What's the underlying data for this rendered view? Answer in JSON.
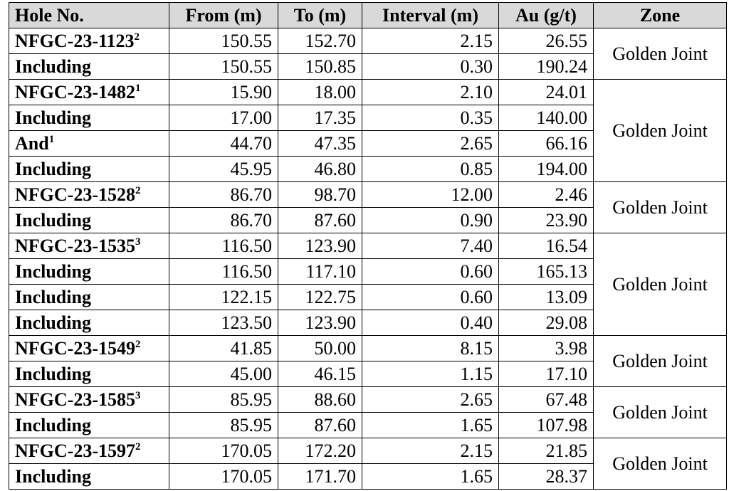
{
  "table": {
    "header": [
      "Hole No.",
      "From (m)",
      "To (m)",
      "Interval (m)",
      "Au (g/t)",
      "Zone"
    ],
    "groups": [
      {
        "zone": "Golden Joint",
        "rows": [
          {
            "hole": "NFGC-23-1123",
            "note": "2",
            "from": "150.55",
            "to": "152.70",
            "interval": "2.15",
            "au": "26.55"
          },
          {
            "hole": "Including",
            "from": "150.55",
            "to": "150.85",
            "interval": "0.30",
            "au": "190.24"
          }
        ]
      },
      {
        "zone": "Golden Joint",
        "rows": [
          {
            "hole": "NFGC-23-1482",
            "note": "1",
            "from": "15.90",
            "to": "18.00",
            "interval": "2.10",
            "au": "24.01"
          },
          {
            "hole": "Including",
            "from": "17.00",
            "to": "17.35",
            "interval": "0.35",
            "au": "140.00"
          },
          {
            "hole": "And",
            "note": "1",
            "from": "44.70",
            "to": "47.35",
            "interval": "2.65",
            "au": "66.16"
          },
          {
            "hole": "Including",
            "from": "45.95",
            "to": "46.80",
            "interval": "0.85",
            "au": "194.00"
          }
        ]
      },
      {
        "zone": "Golden Joint",
        "rows": [
          {
            "hole": "NFGC-23-1528",
            "note": "2",
            "from": "86.70",
            "to": "98.70",
            "interval": "12.00",
            "au": "2.46"
          },
          {
            "hole": "Including",
            "from": "86.70",
            "to": "87.60",
            "interval": "0.90",
            "au": "23.90"
          }
        ]
      },
      {
        "zone": "Golden Joint",
        "rows": [
          {
            "hole": "NFGC-23-1535",
            "note": "3",
            "from": "116.50",
            "to": "123.90",
            "interval": "7.40",
            "au": "16.54"
          },
          {
            "hole": "Including",
            "from": "116.50",
            "to": "117.10",
            "interval": "0.60",
            "au": "165.13"
          },
          {
            "hole": "Including",
            "from": "122.15",
            "to": "122.75",
            "interval": "0.60",
            "au": "13.09"
          },
          {
            "hole": "Including",
            "from": "123.50",
            "to": "123.90",
            "interval": "0.40",
            "au": "29.08"
          }
        ]
      },
      {
        "zone": "Golden Joint",
        "rows": [
          {
            "hole": "NFGC-23-1549",
            "note": "2",
            "from": "41.85",
            "to": "50.00",
            "interval": "8.15",
            "au": "3.98"
          },
          {
            "hole": "Including",
            "from": "45.00",
            "to": "46.15",
            "interval": "1.15",
            "au": "17.10"
          }
        ]
      },
      {
        "zone": "Golden Joint",
        "rows": [
          {
            "hole": "NFGC-23-1585",
            "note": "3",
            "from": "85.95",
            "to": "88.60",
            "interval": "2.65",
            "au": "67.48"
          },
          {
            "hole": "Including",
            "from": "85.95",
            "to": "87.60",
            "interval": "1.65",
            "au": "107.98"
          }
        ]
      },
      {
        "zone": "Golden Joint",
        "rows": [
          {
            "hole": "NFGC-23-1597",
            "note": "2",
            "from": "170.05",
            "to": "172.20",
            "interval": "2.15",
            "au": "21.85"
          },
          {
            "hole": "Including",
            "from": "170.05",
            "to": "171.70",
            "interval": "1.65",
            "au": "28.37"
          }
        ]
      }
    ]
  }
}
